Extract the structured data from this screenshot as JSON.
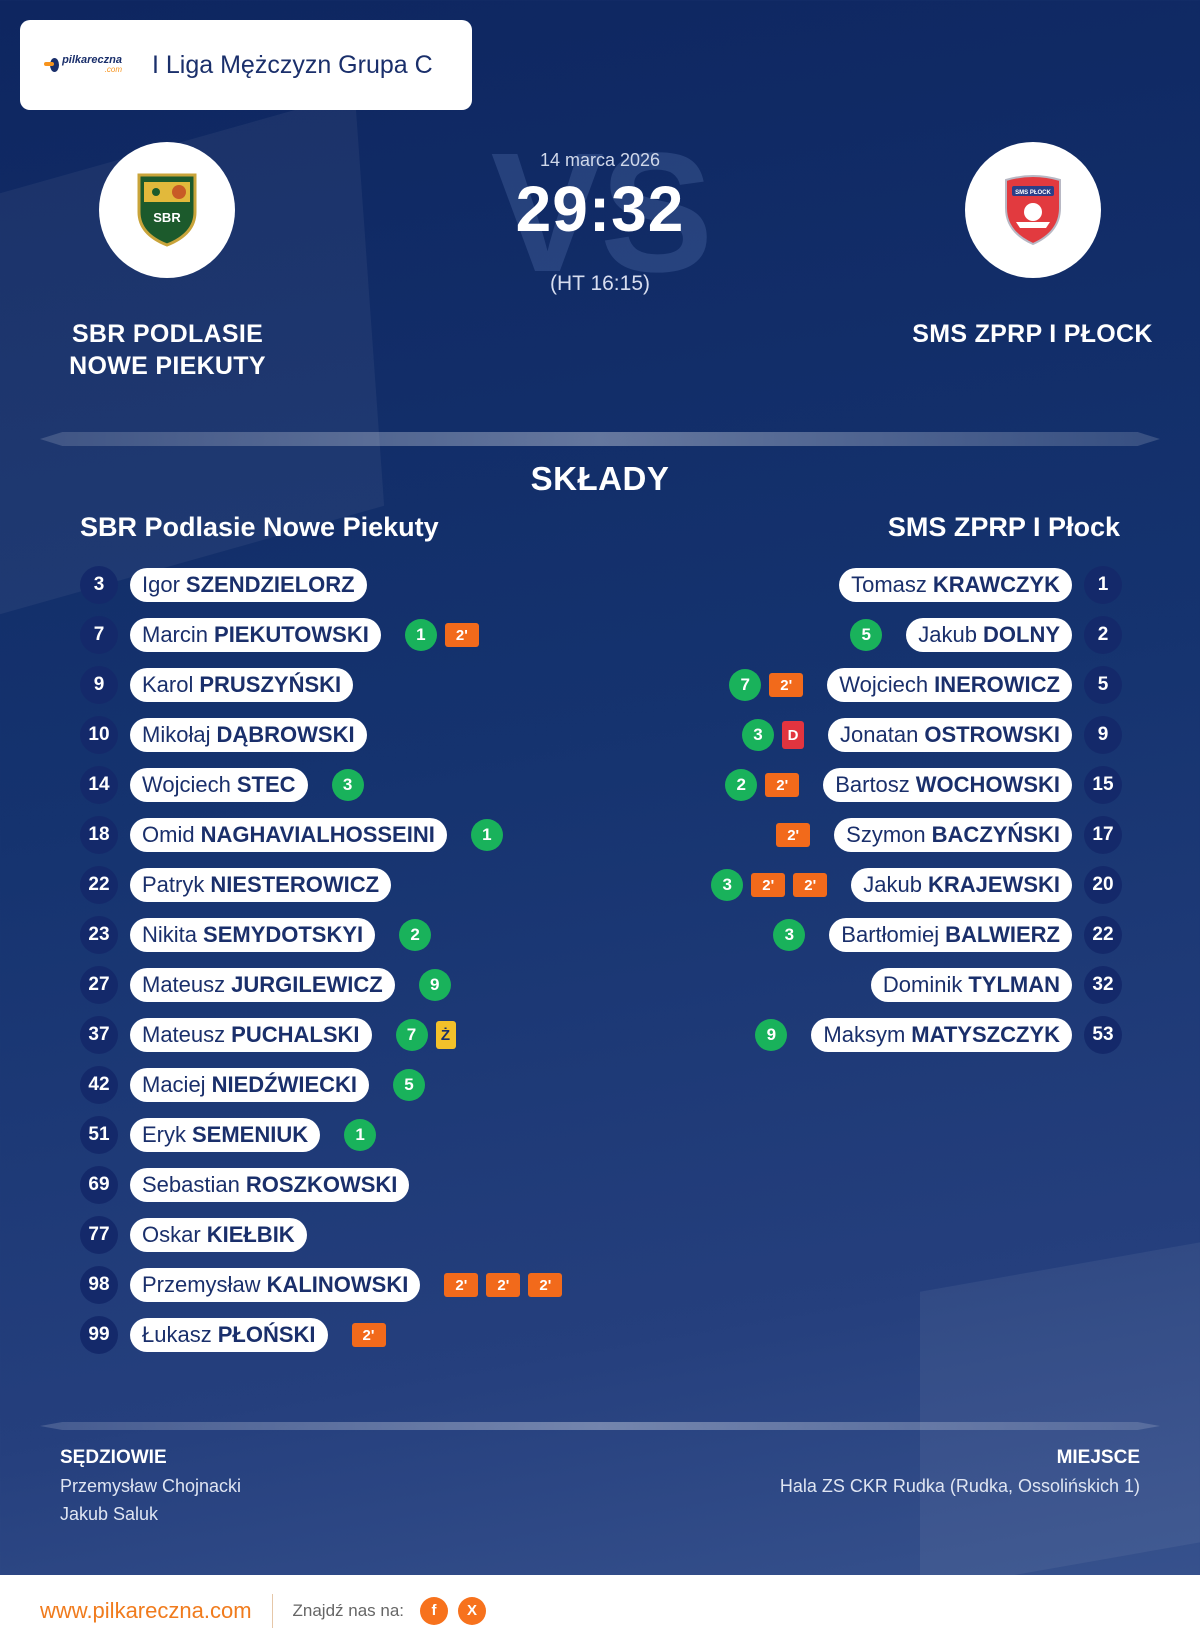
{
  "header": {
    "brand_name": "pilkareczna",
    "brand_tld": ".com",
    "league": "I Liga Mężczyzn Grupa C"
  },
  "match": {
    "date": "14 marca 2026",
    "score": "29:32",
    "halftime": "(HT 16:15)",
    "vs_watermark": "VS",
    "home_name_line1": "SBR PODLASIE",
    "home_name_line2": "NOWE PIEKUTY",
    "away_name": "SMS ZPRP I PŁOCK",
    "home_logo_text": "SBR",
    "away_logo_text": "SMS PŁOCK"
  },
  "lineups": {
    "title": "SKŁADY",
    "home_team": "SBR Podlasie Nowe Piekuty",
    "away_team": "SMS ZPRP I Płock",
    "home": [
      {
        "num": "3",
        "first": "Igor",
        "last": "SZENDZIELORZ",
        "goals": "",
        "cards": []
      },
      {
        "num": "7",
        "first": "Marcin",
        "last": "PIEKUTOWSKI",
        "goals": "1",
        "cards": [
          "2'"
        ]
      },
      {
        "num": "9",
        "first": "Karol",
        "last": "PRUSZYŃSKI",
        "goals": "",
        "cards": []
      },
      {
        "num": "10",
        "first": "Mikołaj",
        "last": "DĄBROWSKI",
        "goals": "",
        "cards": []
      },
      {
        "num": "14",
        "first": "Wojciech",
        "last": "STEC",
        "goals": "3",
        "cards": []
      },
      {
        "num": "18",
        "first": "Omid",
        "last": "NAGHAVIALHOSSEINI",
        "goals": "1",
        "cards": []
      },
      {
        "num": "22",
        "first": "Patryk",
        "last": "NIESTEROWICZ",
        "goals": "",
        "cards": []
      },
      {
        "num": "23",
        "first": "Nikita",
        "last": "SEMYDOTSKYI",
        "goals": "2",
        "cards": []
      },
      {
        "num": "27",
        "first": "Mateusz",
        "last": "JURGILEWICZ",
        "goals": "9",
        "cards": []
      },
      {
        "num": "37",
        "first": "Mateusz",
        "last": "PUCHALSKI",
        "goals": "7",
        "cards": [
          "Ż"
        ]
      },
      {
        "num": "42",
        "first": "Maciej",
        "last": "NIEDŹWIECKI",
        "goals": "5",
        "cards": []
      },
      {
        "num": "51",
        "first": "Eryk",
        "last": "SEMENIUK",
        "goals": "1",
        "cards": []
      },
      {
        "num": "69",
        "first": "Sebastian",
        "last": "ROSZKOWSKI",
        "goals": "",
        "cards": []
      },
      {
        "num": "77",
        "first": "Oskar",
        "last": "KIEŁBIK",
        "goals": "",
        "cards": []
      },
      {
        "num": "98",
        "first": "Przemysław",
        "last": "KALINOWSKI",
        "goals": "",
        "cards": [
          "2'",
          "2'",
          "2'"
        ]
      },
      {
        "num": "99",
        "first": "Łukasz",
        "last": "PŁOŃSKI",
        "goals": "",
        "cards": [
          "2'"
        ]
      }
    ],
    "away": [
      {
        "num": "1",
        "first": "Tomasz",
        "last": "KRAWCZYK",
        "goals": "",
        "cards": []
      },
      {
        "num": "2",
        "first": "Jakub",
        "last": "DOLNY",
        "goals": "5",
        "cards": []
      },
      {
        "num": "5",
        "first": "Wojciech",
        "last": "INEROWICZ",
        "goals": "7",
        "cards": [
          "2'"
        ]
      },
      {
        "num": "9",
        "first": "Jonatan",
        "last": "OSTROWSKI",
        "goals": "3",
        "cards": [
          "D"
        ]
      },
      {
        "num": "15",
        "first": "Bartosz",
        "last": "WOCHOWSKI",
        "goals": "2",
        "cards": [
          "2'"
        ]
      },
      {
        "num": "17",
        "first": "Szymon",
        "last": "BACZYŃSKI",
        "goals": "",
        "cards": [
          "2'"
        ]
      },
      {
        "num": "20",
        "first": "Jakub",
        "last": "KRAJEWSKI",
        "goals": "3",
        "cards": [
          "2'",
          "2'"
        ]
      },
      {
        "num": "22",
        "first": "Bartłomiej",
        "last": "BALWIERZ",
        "goals": "3",
        "cards": []
      },
      {
        "num": "32",
        "first": "Dominik",
        "last": "TYLMAN",
        "goals": "",
        "cards": []
      },
      {
        "num": "53",
        "first": "Maksym",
        "last": "MATYSZCZYK",
        "goals": "9",
        "cards": []
      }
    ]
  },
  "officials": {
    "referees_label": "SĘDZIOWIE",
    "referee1": "Przemysław Chojnacki",
    "referee2": "Jakub Saluk",
    "venue_label": "MIEJSCE",
    "venue": "Hala ZS CKR Rudka (Rudka, Ossolińskich 1)"
  },
  "footer": {
    "site": "www.pilkareczna.com",
    "find_us": "Znajdź nas na:",
    "social": [
      {
        "icon": "facebook-icon",
        "glyph": "f"
      },
      {
        "icon": "x-icon",
        "glyph": "X"
      }
    ]
  },
  "colors": {
    "goal": "#19b25b",
    "suspension": "#f26a1b",
    "yellow": "#f3c12a",
    "disqualification": "#e2343f",
    "accent": "#f07b1d",
    "navy": "#1a2f6b"
  }
}
